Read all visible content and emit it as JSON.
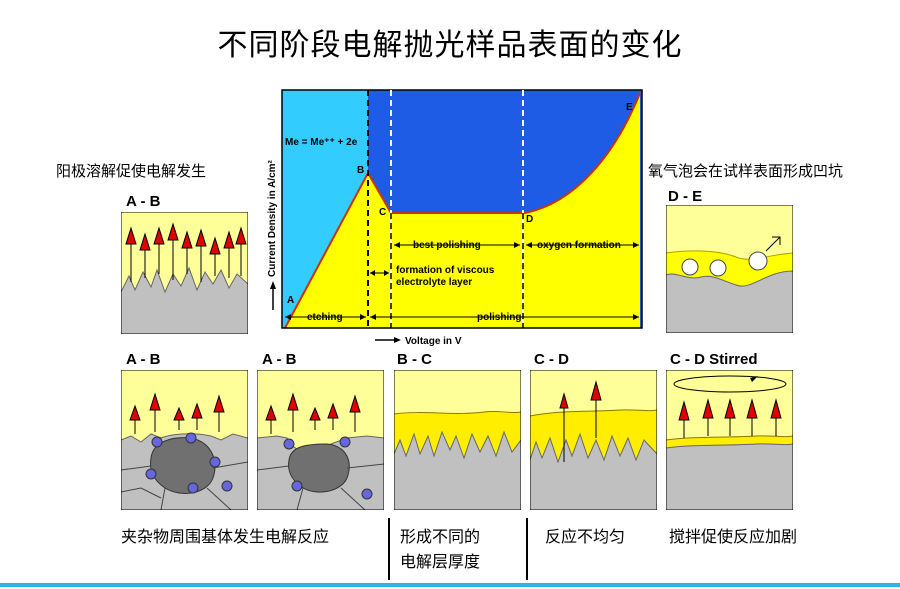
{
  "title": "不同阶段电解抛光样品表面的变化",
  "left_note": "阳极溶解促使电解发生",
  "right_note": "氧气泡会在试样表面形成凹坑",
  "chart": {
    "y_axis_label": "Current Density in A/cm²",
    "x_axis_label": "Voltage in V",
    "equation": "Me = Me⁺⁺ + 2e",
    "points": [
      "A",
      "B",
      "C",
      "D",
      "E"
    ],
    "regions": {
      "etching": "etching",
      "polishing": "polishing",
      "best_polishing": "best polishing",
      "oxygen_formation": "oxygen formation",
      "viscous_line1": "formation of viscous",
      "viscous_line2": "electrolyte layer"
    }
  },
  "panels": {
    "top_left": "A - B",
    "top_right": "D - E",
    "bottom": [
      "A - B",
      "A - B",
      "B - C",
      "C - D",
      "C - D Stirred"
    ]
  },
  "captions": {
    "c1": "夹杂物周围基体发生电解反应",
    "c2_line1": "形成不同的",
    "c2_line2": "电解层厚度",
    "c3": "反应不均匀",
    "c4": "搅拌促使反应加剧"
  },
  "colors": {
    "electrolyte": "#ffff99",
    "metal": "#c0c0c0",
    "inclusion": "#707070",
    "arrow": "#e00000",
    "chart_cyan": "#33ccff",
    "chart_blue": "#1f5ce6",
    "chart_yellow": "#ffff00",
    "viscous_layer": "#ffee00",
    "accent_line": "#2ab4e0"
  }
}
